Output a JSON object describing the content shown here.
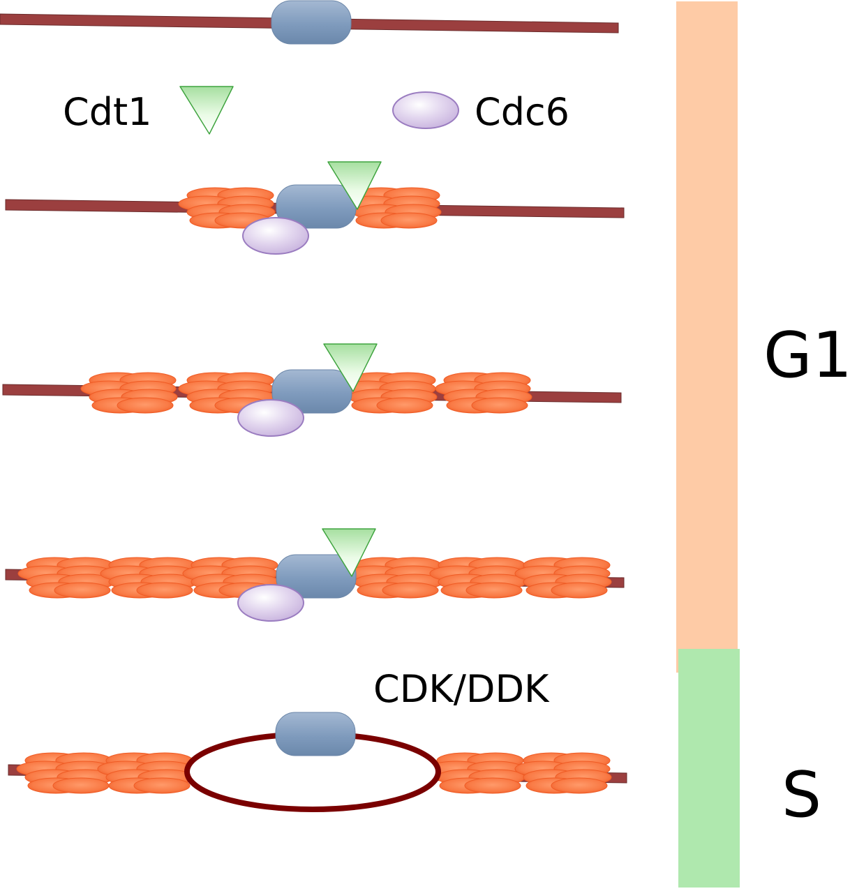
{
  "labels": {
    "cdt1": "Cdt1",
    "cdc6": "Cdc6",
    "cdk_ddk": "CDK/DDK",
    "g1": "G1",
    "s": "S"
  },
  "colors": {
    "dna": "#9b3f3f",
    "dna_bubble": "#7a0000",
    "orc": "#7f9bbd",
    "mcm": "#f97a45",
    "cdt1": "#c8f0c2",
    "cdc6": "#d8c9e8",
    "g1_bar": "#fecba6",
    "s_bar": "#afe8ae"
  },
  "icons": [
    "orc-complex-icon",
    "mcm-helicase-icon",
    "cdt1-triangle-icon",
    "cdc6-ellipse-icon",
    "replication-bubble-icon"
  ]
}
